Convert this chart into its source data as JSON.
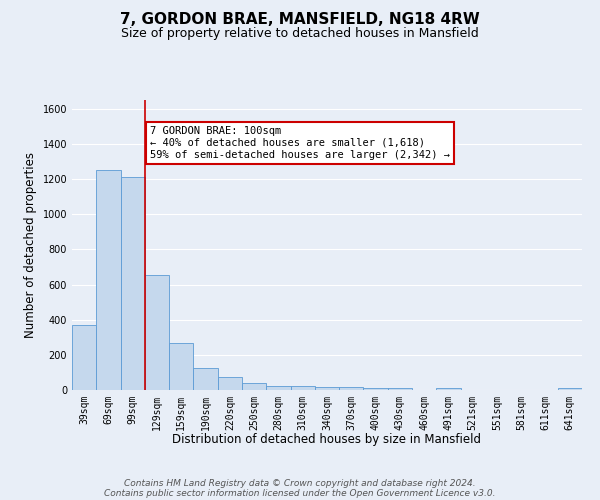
{
  "title": "7, GORDON BRAE, MANSFIELD, NG18 4RW",
  "subtitle": "Size of property relative to detached houses in Mansfield",
  "xlabel": "Distribution of detached houses by size in Mansfield",
  "ylabel": "Number of detached properties",
  "categories": [
    "39sqm",
    "69sqm",
    "99sqm",
    "129sqm",
    "159sqm",
    "190sqm",
    "220sqm",
    "250sqm",
    "280sqm",
    "310sqm",
    "340sqm",
    "370sqm",
    "400sqm",
    "430sqm",
    "460sqm",
    "491sqm",
    "521sqm",
    "551sqm",
    "581sqm",
    "611sqm",
    "641sqm"
  ],
  "values": [
    370,
    1250,
    1210,
    655,
    265,
    125,
    75,
    38,
    20,
    20,
    15,
    15,
    10,
    10,
    0,
    13,
    0,
    0,
    0,
    0,
    10
  ],
  "bar_color": "#c5d8ed",
  "bar_edge_color": "#5b9bd5",
  "red_line_index": 2,
  "red_line_color": "#cc0000",
  "ylim": [
    0,
    1650
  ],
  "yticks": [
    0,
    200,
    400,
    600,
    800,
    1000,
    1200,
    1400,
    1600
  ],
  "annotation_box_text": "7 GORDON BRAE: 100sqm\n← 40% of detached houses are smaller (1,618)\n59% of semi-detached houses are larger (2,342) →",
  "annotation_box_color": "#ffffff",
  "annotation_box_edge_color": "#cc0000",
  "footer_line1": "Contains HM Land Registry data © Crown copyright and database right 2024.",
  "footer_line2": "Contains public sector information licensed under the Open Government Licence v3.0.",
  "background_color": "#e8eef7",
  "grid_color": "#ffffff",
  "title_fontsize": 11,
  "subtitle_fontsize": 9,
  "axis_label_fontsize": 8.5,
  "tick_fontsize": 7,
  "footer_fontsize": 6.5,
  "annotation_fontsize": 7.5
}
